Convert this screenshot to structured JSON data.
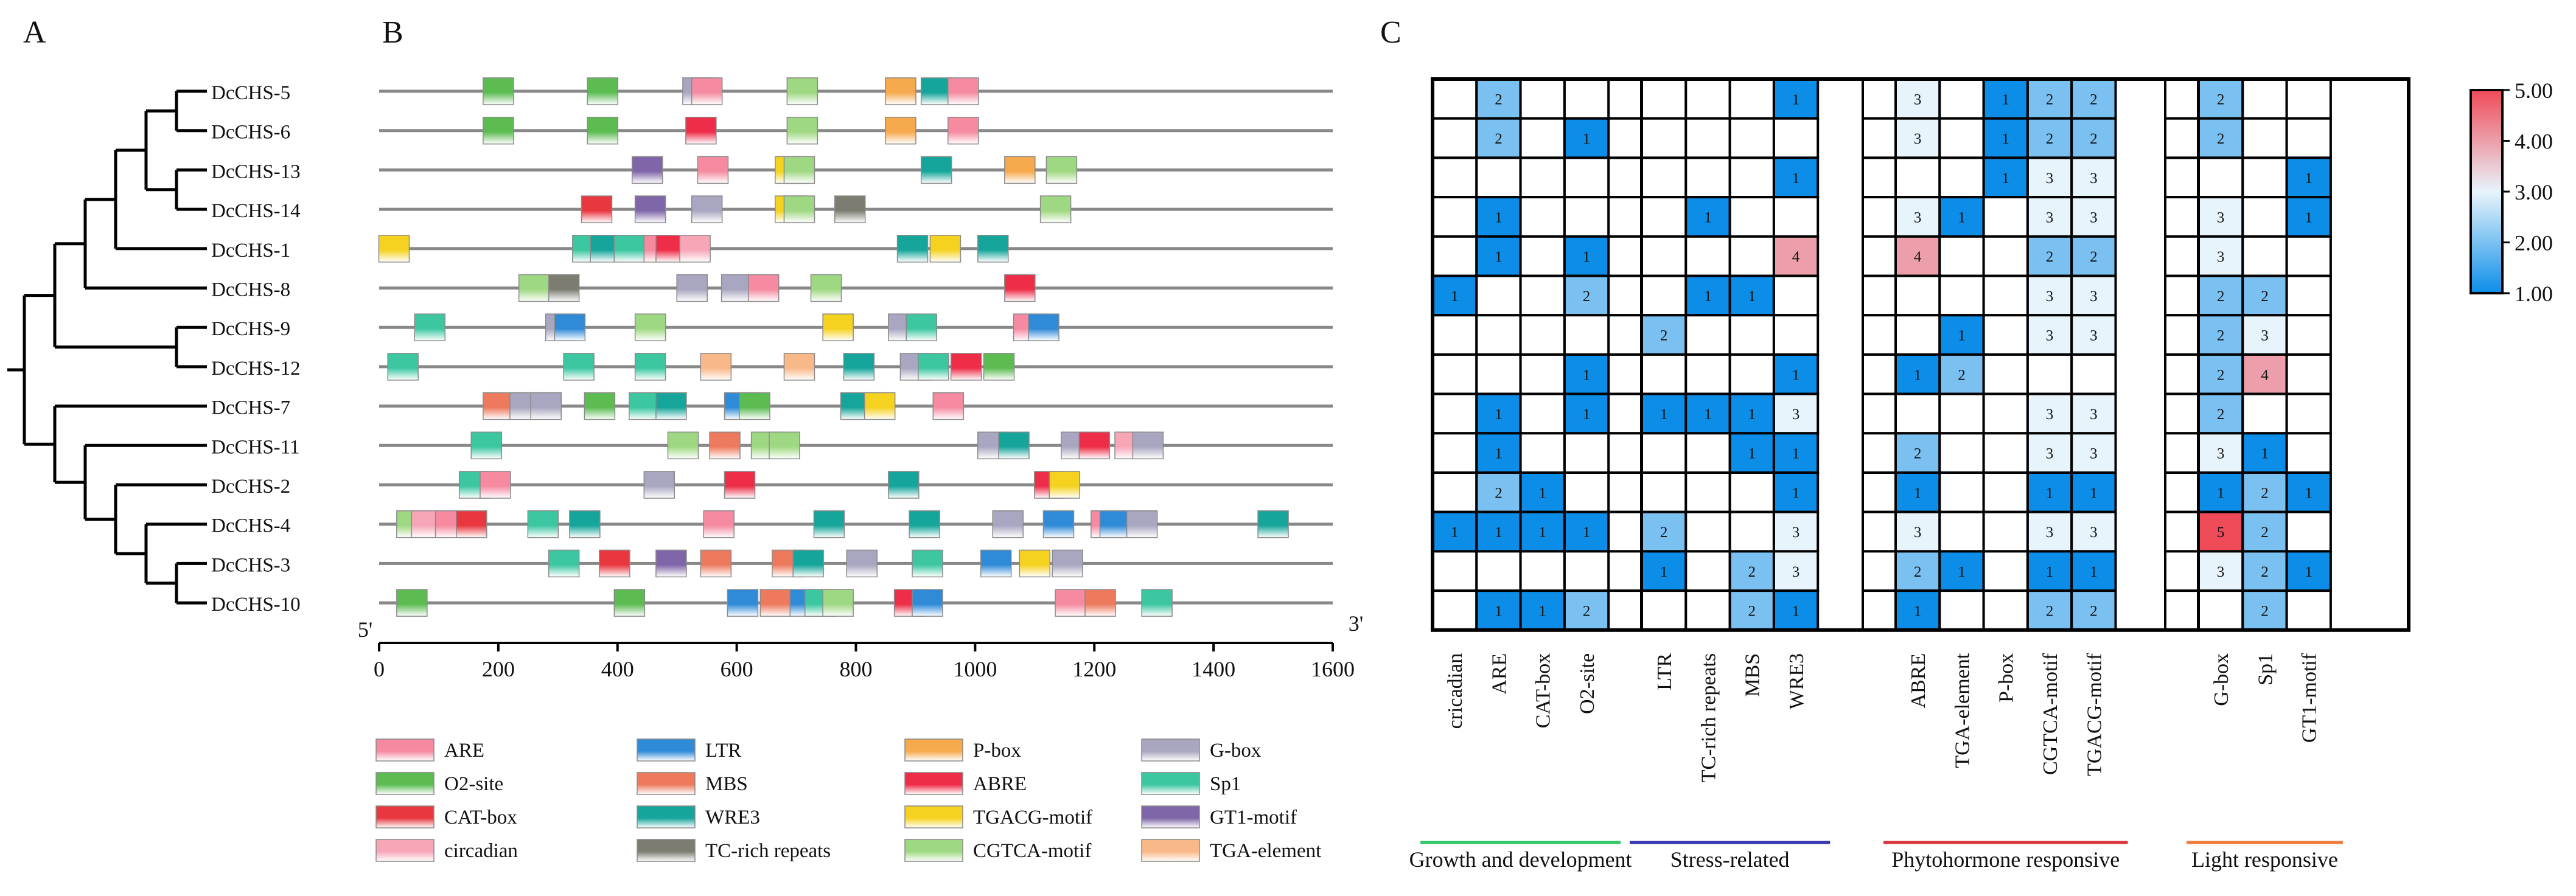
{
  "panels": {
    "A": "A",
    "B": "B",
    "C": "C"
  },
  "genes": [
    "DcCHS-5",
    "DcCHS-6",
    "DcCHS-13",
    "DcCHS-14",
    "DcCHS-1",
    "DcCHS-8",
    "DcCHS-9",
    "DcCHS-12",
    "DcCHS-7",
    "DcCHS-11",
    "DcCHS-2",
    "DcCHS-4",
    "DcCHS-3",
    "DcCHS-10"
  ],
  "tree": {
    "type": "dendrogram",
    "leaves": [
      "DcCHS-5",
      "DcCHS-6",
      "DcCHS-13",
      "DcCHS-14",
      "DcCHS-1",
      "DcCHS-8",
      "DcCHS-9",
      "DcCHS-12",
      "DcCHS-7",
      "DcCHS-11",
      "DcCHS-2",
      "DcCHS-4",
      "DcCHS-3",
      "DcCHS-10"
    ],
    "newick": "((((((DcCHS-5,DcCHS-6),(DcCHS-13,DcCHS-14)),DcCHS-1),DcCHS-8),(DcCHS-9,DcCHS-12)),(DcCHS-7,(DcCHS-11,(DcCHS-2,(DcCHS-4,(DcCHS-3,DcCHS-10))))));"
  },
  "promoter": {
    "axis": {
      "min": 0,
      "max": 1600,
      "ticks": [
        0,
        200,
        400,
        600,
        800,
        1000,
        1200,
        1400,
        1600
      ],
      "label_5": "5'",
      "label_3": "3'"
    },
    "legend": [
      {
        "name": "ARE",
        "color": "#f58aa0"
      },
      {
        "name": "LTR",
        "color": "#2f8ad8"
      },
      {
        "name": "P-box",
        "color": "#f6a94d"
      },
      {
        "name": "G-box",
        "color": "#a8a6c0"
      },
      {
        "name": "O2-site",
        "color": "#5cbc52"
      },
      {
        "name": "MBS",
        "color": "#ee7a5e"
      },
      {
        "name": "ABRE",
        "color": "#ee2d48"
      },
      {
        "name": "Sp1",
        "color": "#3cc7a1"
      },
      {
        "name": "CAT-box",
        "color": "#e8373f"
      },
      {
        "name": "WRE3",
        "color": "#16a59a"
      },
      {
        "name": "TGACG-motif",
        "color": "#f5d21f"
      },
      {
        "name": "GT1-motif",
        "color": "#7f66a8"
      },
      {
        "name": "circadian",
        "color": "#f7a6b8"
      },
      {
        "name": "TC-rich repeats",
        "color": "#7c7d70"
      },
      {
        "name": "CGTCA-motif",
        "color": "#9fd882"
      },
      {
        "name": "TGA-element",
        "color": "#f8b888"
      }
    ],
    "elements": [
      [
        [
          "O2-site",
          200
        ],
        [
          "O2-site",
          375
        ],
        [
          "G-box",
          535
        ],
        [
          "ARE",
          550
        ],
        [
          "CGTCA-motif",
          710
        ],
        [
          "P-box",
          875
        ],
        [
          "WRE3",
          935
        ],
        [
          "ARE",
          980
        ]
      ],
      [
        [
          "O2-site",
          200
        ],
        [
          "O2-site",
          375
        ],
        [
          "ABRE",
          540
        ],
        [
          "CGTCA-motif",
          710
        ],
        [
          "P-box",
          875
        ],
        [
          "ARE",
          980
        ]
      ],
      [
        [
          "GT1-motif",
          450
        ],
        [
          "ARE",
          560
        ],
        [
          "TGACG-motif",
          690
        ],
        [
          "CGTCA-motif",
          705
        ],
        [
          "WRE3",
          935
        ],
        [
          "P-box",
          1075
        ],
        [
          "CGTCA-motif",
          1145
        ]
      ],
      [
        [
          "CAT-box",
          365
        ],
        [
          "GT1-motif",
          455
        ],
        [
          "G-box",
          550
        ],
        [
          "TGACG-motif",
          690
        ],
        [
          "CGTCA-motif",
          705
        ],
        [
          "TC-rich repeats",
          790
        ],
        [
          "CGTCA-motif",
          1135
        ]
      ],
      [
        [
          "TGACG-motif",
          25
        ],
        [
          "Sp1",
          350
        ],
        [
          "WRE3",
          380
        ],
        [
          "Sp1",
          420
        ],
        [
          "ARE",
          470
        ],
        [
          "ABRE",
          490
        ],
        [
          "circadian",
          530
        ],
        [
          "WRE3",
          895
        ],
        [
          "TGACG-motif",
          950
        ],
        [
          "WRE3",
          1030
        ]
      ],
      [
        [
          "CGTCA-motif",
          260
        ],
        [
          "TC-rich repeats",
          310
        ],
        [
          "G-box",
          525
        ],
        [
          "G-box",
          600
        ],
        [
          "ARE",
          645
        ],
        [
          "CGTCA-motif",
          750
        ],
        [
          "ABRE",
          1075
        ]
      ],
      [
        [
          "Sp1",
          85
        ],
        [
          "G-box",
          305
        ],
        [
          "LTR",
          320
        ],
        [
          "CGTCA-motif",
          455
        ],
        [
          "TGACG-motif",
          770
        ],
        [
          "G-box",
          880
        ],
        [
          "Sp1",
          910
        ],
        [
          "ARE",
          1090
        ],
        [
          "LTR",
          1115
        ]
      ],
      [
        [
          "Sp1",
          40
        ],
        [
          "Sp1",
          335
        ],
        [
          "Sp1",
          455
        ],
        [
          "TGA-element",
          565
        ],
        [
          "TGA-element",
          705
        ],
        [
          "WRE3",
          805
        ],
        [
          "G-box",
          900
        ],
        [
          "Sp1",
          930
        ],
        [
          "ABRE",
          985
        ],
        [
          "O2-site",
          1040
        ]
      ],
      [
        [
          "MBS",
          200
        ],
        [
          "G-box",
          245
        ],
        [
          "G-box",
          280
        ],
        [
          "O2-site",
          370
        ],
        [
          "Sp1",
          445
        ],
        [
          "WRE3",
          490
        ],
        [
          "LTR",
          605
        ],
        [
          "O2-site",
          630
        ],
        [
          "WRE3",
          800
        ],
        [
          "TGACG-motif",
          840
        ],
        [
          "ARE",
          955
        ]
      ],
      [
        [
          "Sp1",
          180
        ],
        [
          "CGTCA-motif",
          510
        ],
        [
          "MBS",
          580
        ],
        [
          "CGTCA-motif",
          650
        ],
        [
          "CGTCA-motif",
          680
        ],
        [
          "G-box",
          1030
        ],
        [
          "WRE3",
          1065
        ],
        [
          "G-box",
          1170
        ],
        [
          "ABRE",
          1200
        ],
        [
          "circadian",
          1260
        ],
        [
          "G-box",
          1290
        ]
      ],
      [
        [
          "Sp1",
          160
        ],
        [
          "ARE",
          195
        ],
        [
          "G-box",
          470
        ],
        [
          "ABRE",
          605
        ],
        [
          "WRE3",
          880
        ],
        [
          "ABRE",
          1125
        ],
        [
          "TGACG-motif",
          1150
        ]
      ],
      [
        [
          "CGTCA-motif",
          55
        ],
        [
          "circadian",
          80
        ],
        [
          "ARE",
          120
        ],
        [
          "CAT-box",
          155
        ],
        [
          "Sp1",
          275
        ],
        [
          "WRE3",
          345
        ],
        [
          "ARE",
          570
        ],
        [
          "WRE3",
          755
        ],
        [
          "WRE3",
          915
        ],
        [
          "G-box",
          1055
        ],
        [
          "LTR",
          1140
        ],
        [
          "ARE",
          1220
        ],
        [
          "LTR",
          1235
        ],
        [
          "G-box",
          1280
        ],
        [
          "WRE3",
          1500
        ]
      ],
      [
        [
          "Sp1",
          310
        ],
        [
          "CAT-box",
          395
        ],
        [
          "GT1-motif",
          490
        ],
        [
          "MBS",
          565
        ],
        [
          "MBS",
          685
        ],
        [
          "WRE3",
          720
        ],
        [
          "G-box",
          810
        ],
        [
          "Sp1",
          920
        ],
        [
          "LTR",
          1035
        ],
        [
          "TGACG-motif",
          1100
        ],
        [
          "G-box",
          1155
        ]
      ],
      [
        [
          "O2-site",
          55
        ],
        [
          "O2-site",
          420
        ],
        [
          "LTR",
          610
        ],
        [
          "MBS",
          665
        ],
        [
          "LTR",
          715
        ],
        [
          "Sp1",
          740
        ],
        [
          "CGTCA-motif",
          770
        ],
        [
          "ABRE",
          890
        ],
        [
          "LTR",
          920
        ],
        [
          "ARE",
          1160
        ],
        [
          "MBS",
          1210
        ],
        [
          "Sp1",
          1305
        ]
      ]
    ]
  },
  "chart_data": {
    "type": "heatmap",
    "columns": [
      "cricadian",
      "ARE",
      "CAT-box",
      "O2-site",
      "LTR",
      "TC-rich repeats",
      "MBS",
      "WRE3",
      "ABRE",
      "TGA-element",
      "P-box",
      "CGTCA-motif",
      "TGACG-motif",
      "G-box",
      "Sp1",
      "GT1-motif"
    ],
    "groups": [
      {
        "name": "Growth and development",
        "color": "#2ec866",
        "columns": [
          "cricadian",
          "ARE",
          "CAT-box",
          "O2-site"
        ]
      },
      {
        "name": "Stress-related",
        "color": "#3434b0",
        "columns": [
          "LTR",
          "TC-rich repeats",
          "MBS",
          "WRE3"
        ]
      },
      {
        "name": "Phytohormone responsive",
        "color": "#d8343a",
        "columns": [
          "ABRE",
          "TGA-element",
          "P-box",
          "CGTCA-motif",
          "TGACG-motif"
        ]
      },
      {
        "name": "Light responsive",
        "color": "#f07a3a",
        "columns": [
          "G-box",
          "Sp1",
          "GT1-motif"
        ]
      }
    ],
    "rows": [
      "DcCHS-5",
      "DcCHS-6",
      "DcCHS-13",
      "DcCHS-14",
      "DcCHS-1",
      "DcCHS-8",
      "DcCHS-9",
      "DcCHS-12",
      "DcCHS-7",
      "DcCHS-11",
      "DcCHS-2",
      "DcCHS-4",
      "DcCHS-3",
      "DcCHS-10"
    ],
    "values": [
      [
        null,
        2,
        null,
        null,
        null,
        null,
        null,
        1,
        3,
        null,
        1,
        2,
        2,
        2,
        null,
        null
      ],
      [
        null,
        2,
        null,
        1,
        null,
        null,
        null,
        null,
        3,
        null,
        1,
        2,
        2,
        2,
        null,
        null
      ],
      [
        null,
        null,
        null,
        null,
        null,
        null,
        null,
        1,
        null,
        null,
        1,
        3,
        3,
        null,
        null,
        1
      ],
      [
        null,
        1,
        null,
        null,
        null,
        1,
        null,
        null,
        3,
        1,
        null,
        3,
        3,
        3,
        null,
        1
      ],
      [
        null,
        1,
        null,
        1,
        null,
        null,
        null,
        4,
        4,
        null,
        null,
        2,
        2,
        3,
        null,
        null
      ],
      [
        1,
        null,
        null,
        2,
        null,
        1,
        1,
        null,
        null,
        null,
        null,
        3,
        3,
        2,
        2,
        null
      ],
      [
        null,
        null,
        null,
        null,
        2,
        null,
        null,
        null,
        null,
        1,
        null,
        3,
        3,
        2,
        3,
        null
      ],
      [
        null,
        null,
        null,
        1,
        null,
        null,
        null,
        1,
        1,
        2,
        null,
        null,
        null,
        2,
        4,
        null
      ],
      [
        null,
        1,
        null,
        1,
        1,
        1,
        1,
        3,
        null,
        null,
        null,
        3,
        3,
        2,
        null,
        null
      ],
      [
        null,
        1,
        null,
        null,
        null,
        null,
        1,
        1,
        2,
        null,
        null,
        3,
        3,
        3,
        1,
        null
      ],
      [
        null,
        2,
        1,
        null,
        null,
        null,
        null,
        1,
        1,
        null,
        null,
        1,
        1,
        1,
        2,
        1
      ],
      [
        1,
        1,
        1,
        1,
        2,
        null,
        null,
        3,
        3,
        null,
        null,
        3,
        3,
        5,
        2,
        null
      ],
      [
        null,
        null,
        null,
        null,
        1,
        null,
        2,
        3,
        2,
        1,
        null,
        1,
        1,
        3,
        2,
        1
      ],
      [
        null,
        1,
        1,
        2,
        null,
        null,
        2,
        1,
        1,
        null,
        null,
        2,
        2,
        null,
        2,
        null
      ]
    ],
    "colorbar": {
      "min": 1.0,
      "max": 5.0,
      "ticks": [
        "1.00",
        "2.00",
        "3.00",
        "4.00",
        "5.00"
      ],
      "low_color": "#0c8ee8",
      "mid_color": "#e8f4fb",
      "high_color": "#ef4a58"
    }
  }
}
